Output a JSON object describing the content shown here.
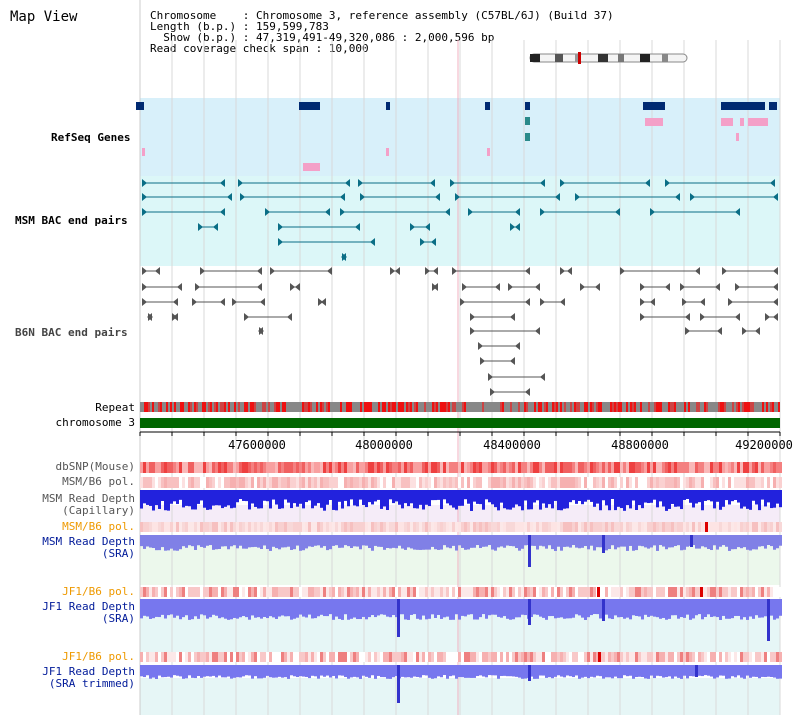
{
  "title": "Map View",
  "info": {
    "chromosome_key": "Chromosome",
    "chromosome_val": "Chromosome 3, reference assembly (C57BL/6J) (Build 37)",
    "length_key": "Length (b.p.)",
    "length_val": "159,599,783",
    "show_key": "Show (b.p.)",
    "show_val": "47,319,491-49,320,086 : 2,000,596 bp",
    "coverage_key": "Read coverage check span",
    "coverage_val": "10,000"
  },
  "tracks": {
    "refseq": "RefSeq Genes",
    "msm_bac": "MSM BAC end pairs",
    "b6n_bac": "B6N BAC end pairs",
    "repeat": "Repeat",
    "chromosome": "chromosome 3",
    "dbsnp": "dbSNP(Mouse)",
    "msm_b6_pol_1": "MSM/B6 pol.",
    "msm_depth_cap_1": "MSM Read Depth",
    "msm_depth_cap_2": "(Capillary)",
    "msm_b6_pol_2": "MSM/B6 pol.",
    "msm_depth_sra_1": "MSM Read Depth",
    "msm_depth_sra_2": "(SRA)",
    "jf1_b6_pol_1": "JF1/B6 pol.",
    "jf1_depth_sra_1": "JF1 Read Depth",
    "jf1_depth_sra_2": "(SRA)",
    "jf1_b6_pol_2": "JF1/B6 pol.",
    "jf1_depth_trim_1": "JF1 Read Depth",
    "jf1_depth_trim_2": "(SRA trimmed)"
  },
  "axis": {
    "ticks": [
      "47600000",
      "48000000",
      "48400000",
      "48800000",
      "49200000"
    ]
  },
  "colors": {
    "refseq_bg": "#d8f0fa",
    "msm_bac_bg": "#dcf7f8",
    "gene": "#002a72",
    "bac_msm": "#0a6e86",
    "bac_b6n": "#555555",
    "chromosome_bar": "#006600",
    "label_blue": "#001a99",
    "label_teal": "#006680",
    "label_orange": "#ee9900",
    "depth_blue": "#2222dd",
    "depth_light": "#8888ee"
  }
}
